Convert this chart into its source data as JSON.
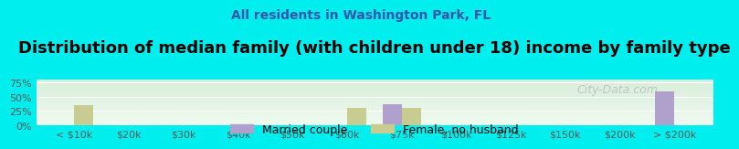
{
  "title": "Distribution of median family (with children under 18) income by family type",
  "subtitle": "All residents in Washington Park, FL",
  "background_color": "#00EEEE",
  "plot_bg_top": "#d8eeda",
  "plot_bg_bottom": "#f0faf0",
  "categories": [
    "< $10k",
    "$20k",
    "$30k",
    "$40k",
    "$50k",
    "$60k",
    "$75k",
    "$100k",
    "$125k",
    "$150k",
    "$200k",
    "> $200k"
  ],
  "married_couple": [
    0,
    0,
    0,
    0,
    0,
    0,
    37,
    0,
    0,
    0,
    0,
    60
  ],
  "female_no_husband": [
    35,
    0,
    0,
    0,
    0,
    30,
    30,
    0,
    0,
    0,
    0,
    0
  ],
  "married_color": "#b0a0cc",
  "female_color": "#c8cc90",
  "bar_width": 0.35,
  "ylim": [
    0,
    80
  ],
  "yticks": [
    0,
    25,
    50,
    75
  ],
  "yticklabels": [
    "0%",
    "25%",
    "50%",
    "75%"
  ],
  "watermark": "City-Data.com",
  "title_fontsize": 13,
  "subtitle_fontsize": 10,
  "tick_fontsize": 8,
  "legend_fontsize": 9
}
